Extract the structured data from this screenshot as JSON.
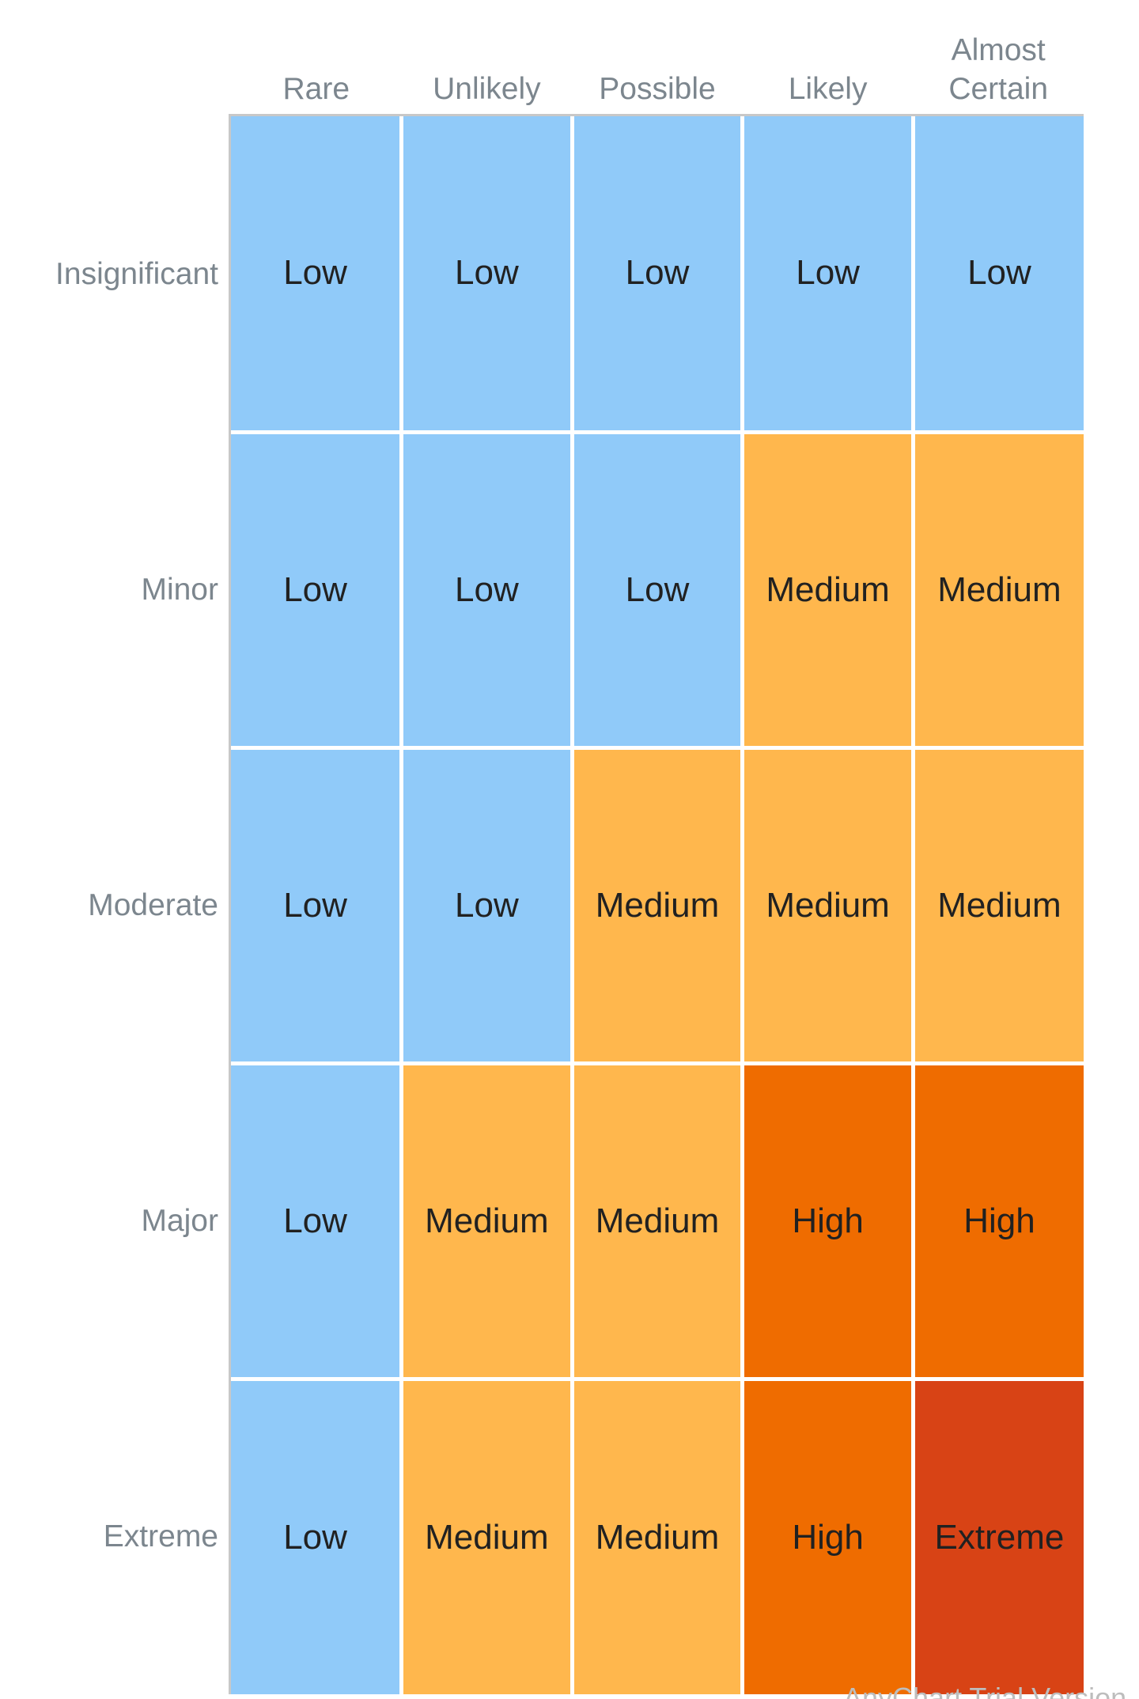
{
  "chart_data": {
    "type": "heatmap",
    "x_categories": [
      "Rare",
      "Unlikely",
      "Possible",
      "Likely",
      "Almost Certain"
    ],
    "y_categories": [
      "Insignificant",
      "Minor",
      "Moderate",
      "Major",
      "Extreme"
    ],
    "cells": [
      [
        "Low",
        "Low",
        "Low",
        "Low",
        "Low"
      ],
      [
        "Low",
        "Low",
        "Low",
        "Medium",
        "Medium"
      ],
      [
        "Low",
        "Low",
        "Medium",
        "Medium",
        "Medium"
      ],
      [
        "Low",
        "Medium",
        "Medium",
        "High",
        "High"
      ],
      [
        "Low",
        "Medium",
        "Medium",
        "High",
        "Extreme"
      ]
    ],
    "colors": {
      "Low": "#90caf9",
      "Medium": "#ffb74d",
      "High": "#ef6c00",
      "Extreme": "#d84315"
    },
    "watermark": "AnyChart Trial Version"
  }
}
